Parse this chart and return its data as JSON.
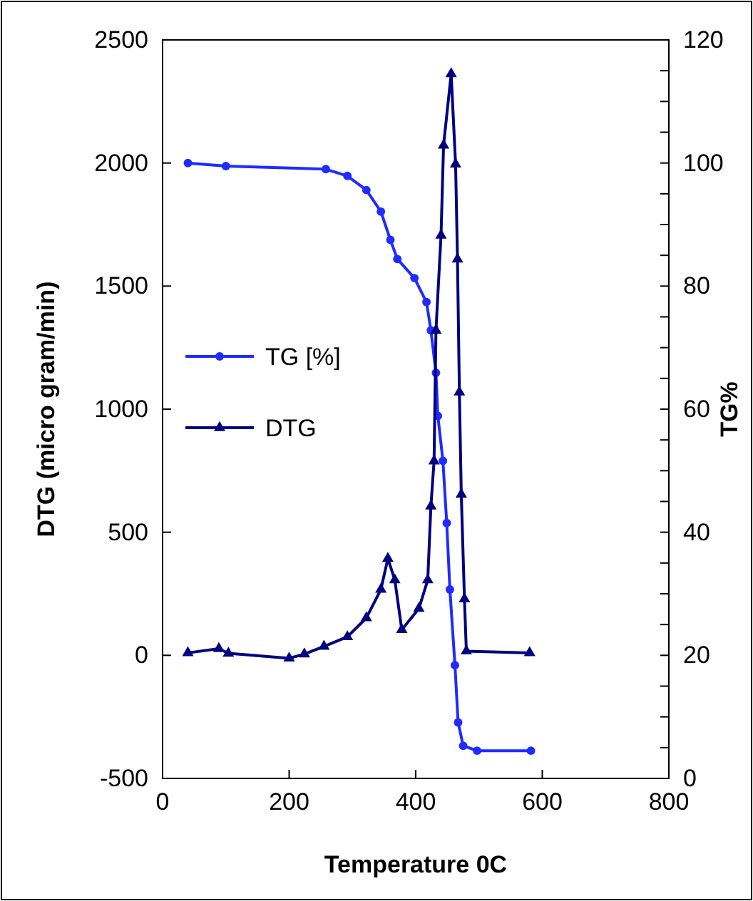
{
  "chart_data": {
    "type": "line",
    "xlabel": "Temperature 0C",
    "ylabel": "DTG (micro gram/min)",
    "y2label": "TG%",
    "xlim": [
      0,
      800
    ],
    "xticks": [
      0,
      200,
      400,
      600,
      800
    ],
    "ylim": [
      -500,
      2500
    ],
    "yticks": [
      -500,
      0,
      500,
      1000,
      1500,
      2000,
      2500
    ],
    "y2lim": [
      0,
      120
    ],
    "y2ticks": [
      0,
      {
        "value": 5,
        "label": null
      },
      {
        "value": 10,
        "label": null
      },
      {
        "value": 15,
        "label": null
      },
      20,
      {
        "value": 25,
        "label": null
      },
      {
        "value": 30,
        "label": null
      },
      {
        "value": 35,
        "label": null
      },
      40,
      {
        "value": 45,
        "label": null
      },
      {
        "value": 50,
        "label": null
      },
      {
        "value": 55,
        "label": null
      },
      60,
      {
        "value": 65,
        "label": null
      },
      {
        "value": 70,
        "label": null
      },
      {
        "value": 75,
        "label": null
      },
      80,
      {
        "value": 85,
        "label": null
      },
      {
        "value": 90,
        "label": null
      },
      {
        "value": 95,
        "label": null
      },
      100,
      {
        "value": 105,
        "label": null
      },
      {
        "value": 110,
        "label": null
      },
      {
        "value": 115,
        "label": null
      },
      120
    ],
    "legend": "left",
    "grid": false,
    "series": [
      {
        "name": "TG [%]",
        "color": "#1f2bff",
        "axis": "y2",
        "marker": "circle",
        "x": [
          40,
          100,
          258,
          292,
          322,
          345,
          360,
          371,
          398,
          417,
          424,
          432,
          435,
          443,
          449,
          454,
          462,
          467,
          475,
          497,
          582
        ],
        "values": [
          100,
          99.5,
          99,
          97.9,
          95.6,
          92.1,
          87.5,
          84.4,
          81.3,
          77.4,
          72.8,
          65.9,
          58.9,
          51.6,
          41.5,
          30.7,
          18.4,
          9.1,
          5.3,
          4.5,
          4.5
        ]
      },
      {
        "name": "DTG",
        "color": "#000080",
        "marker": "triangle",
        "x": [
          40,
          89,
          104,
          200,
          224,
          255,
          292,
          322,
          345,
          356,
          367,
          378,
          405,
          419,
          424,
          429,
          432,
          440,
          444,
          456,
          463,
          466,
          469,
          472,
          477,
          480,
          580
        ],
        "values": [
          10,
          27,
          8,
          -12,
          5,
          36,
          75,
          152,
          268,
          393,
          306,
          104,
          190,
          306,
          606,
          789,
          1320,
          1706,
          2072,
          2362,
          1995,
          1609,
          1069,
          654,
          229,
          17,
          10
        ]
      }
    ]
  }
}
